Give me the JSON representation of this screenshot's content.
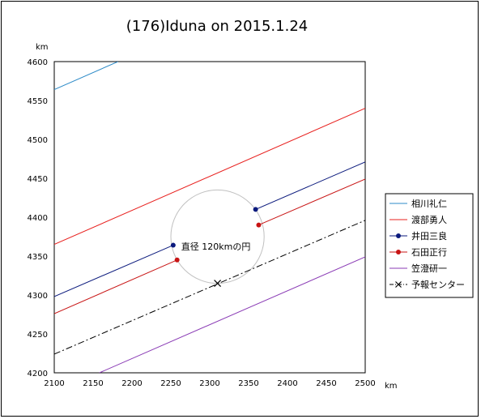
{
  "chart_data": {
    "type": "line",
    "title": "(176)Iduna on 2015.1.24",
    "xlabel": "km",
    "ylabel": "km",
    "xlim": [
      2100,
      2500
    ],
    "ylim": [
      4200,
      4600
    ],
    "xticks": [
      2100,
      2150,
      2200,
      2250,
      2300,
      2350,
      2400,
      2450,
      2500
    ],
    "yticks": [
      4200,
      4250,
      4300,
      4350,
      4400,
      4450,
      4500,
      4550,
      4600
    ],
    "grid": false,
    "legend_position": "right",
    "series": [
      {
        "name": "相川礼仁",
        "color": "#2e8bc8",
        "style": "solid",
        "marker": "none",
        "segments": [
          [
            [
              2100,
              4564
            ],
            [
              2182,
              4600
            ]
          ]
        ]
      },
      {
        "name": "渡部勇人",
        "color": "#e8201e",
        "style": "solid",
        "marker": "none",
        "segments": [
          [
            [
              2100,
              4365
            ],
            [
              2500,
              4540
            ]
          ]
        ]
      },
      {
        "name": "井田三良",
        "color": "#0b1a7d",
        "style": "solid",
        "marker": "circle",
        "segments": [
          [
            [
              2100,
              4298
            ],
            [
              2253,
              4364
            ]
          ],
          [
            [
              2359,
              4410
            ],
            [
              2500,
              4471
            ]
          ]
        ],
        "points": [
          [
            2253,
            4364
          ],
          [
            2359,
            4410
          ]
        ]
      },
      {
        "name": "石田正行",
        "color": "#c81414",
        "style": "solid",
        "marker": "circle",
        "segments": [
          [
            [
              2100,
              4276
            ],
            [
              2258,
              4345
            ]
          ],
          [
            [
              2363,
              4390
            ],
            [
              2500,
              4449
            ]
          ]
        ],
        "points": [
          [
            2258,
            4345
          ],
          [
            2363,
            4390
          ]
        ]
      },
      {
        "name": "笠澄研一",
        "color": "#8a3bb5",
        "style": "solid",
        "marker": "none",
        "segments": [
          [
            [
              2158,
              4200
            ],
            [
              2500,
              4349
            ]
          ]
        ]
      },
      {
        "name": "予報センター",
        "color": "#000000",
        "style": "dashdot",
        "marker": "cross",
        "segments": [
          [
            [
              2100,
              4224
            ],
            [
              2500,
              4396
            ]
          ]
        ],
        "points": [
          [
            2310,
            4315
          ]
        ]
      }
    ],
    "circle": {
      "center": [
        2310,
        4375
      ],
      "diameter_km": 120,
      "color": "#c0c0c0"
    },
    "annotation": "直径 120kmの円"
  }
}
